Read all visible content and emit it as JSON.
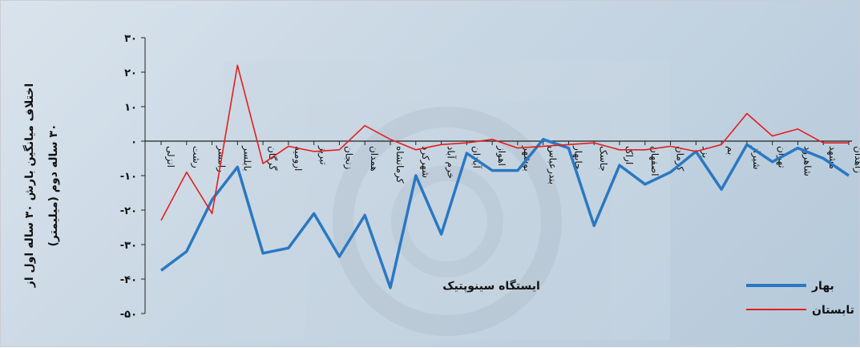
{
  "chart_data": {
    "type": "line",
    "title": "",
    "xlabel": "ایستگاه سینوپتیک",
    "ylabel": "اختلاف میانگین بارش ۳۰ ساله اول از ۳۰ ساله دوم (میلیمتر)",
    "ylim": [
      -50,
      30
    ],
    "yticks": [
      30,
      20,
      10,
      0,
      -10,
      -20,
      -30,
      -40,
      -50
    ],
    "ytick_labels": [
      "۳۰",
      "۲۰",
      "۱۰",
      "۰",
      "-۱۰",
      "-۲۰",
      "-۳۰",
      "-۴۰",
      "-۵۰"
    ],
    "grid": false,
    "legend_position": "bottom-right",
    "categories": [
      "انزلی",
      "رشت",
      "رامسر",
      "بابلسر",
      "گرگان",
      "ارومیه",
      "تبریز",
      "زنجان",
      "همدان",
      "کرمانشاه",
      "شهرکرد",
      "خرم آباد",
      "آبادان",
      "اهواز",
      "بوشهر",
      "بندرعباس",
      "چابهار",
      "جاسک",
      "اراک",
      "اصفهان",
      "کرمان",
      "یزد",
      "بم",
      "شیراز",
      "تهران",
      "شاهرود",
      "مشهد",
      "زاهدان"
    ],
    "series": [
      {
        "name": "بهار",
        "color": "#2a78c2",
        "values": [
          -37.5,
          -32.0,
          -17.0,
          -7.5,
          -32.5,
          -31.0,
          -21.0,
          -33.5,
          -21.5,
          -42.5,
          -10.0,
          -27.0,
          -3.5,
          -8.5,
          -8.5,
          0.5,
          -2.0,
          -24.5,
          -7.0,
          -12.5,
          -9.0,
          -3.0,
          -14.0,
          -1.0,
          -6.0,
          -2.0,
          -5.0,
          -10.0
        ]
      },
      {
        "name": "تابستان",
        "color": "#e41e1e",
        "values": [
          -23.0,
          -9.0,
          -21.0,
          22.0,
          -6.5,
          -1.5,
          -3.0,
          -2.5,
          4.5,
          0.5,
          -2.5,
          -1.0,
          -0.5,
          0.5,
          -2.0,
          -1.5,
          -1.0,
          -0.5,
          -2.5,
          -2.5,
          -1.5,
          -3.0,
          -1.0,
          8.0,
          1.5,
          3.5,
          -0.5,
          -0.5
        ]
      }
    ]
  }
}
